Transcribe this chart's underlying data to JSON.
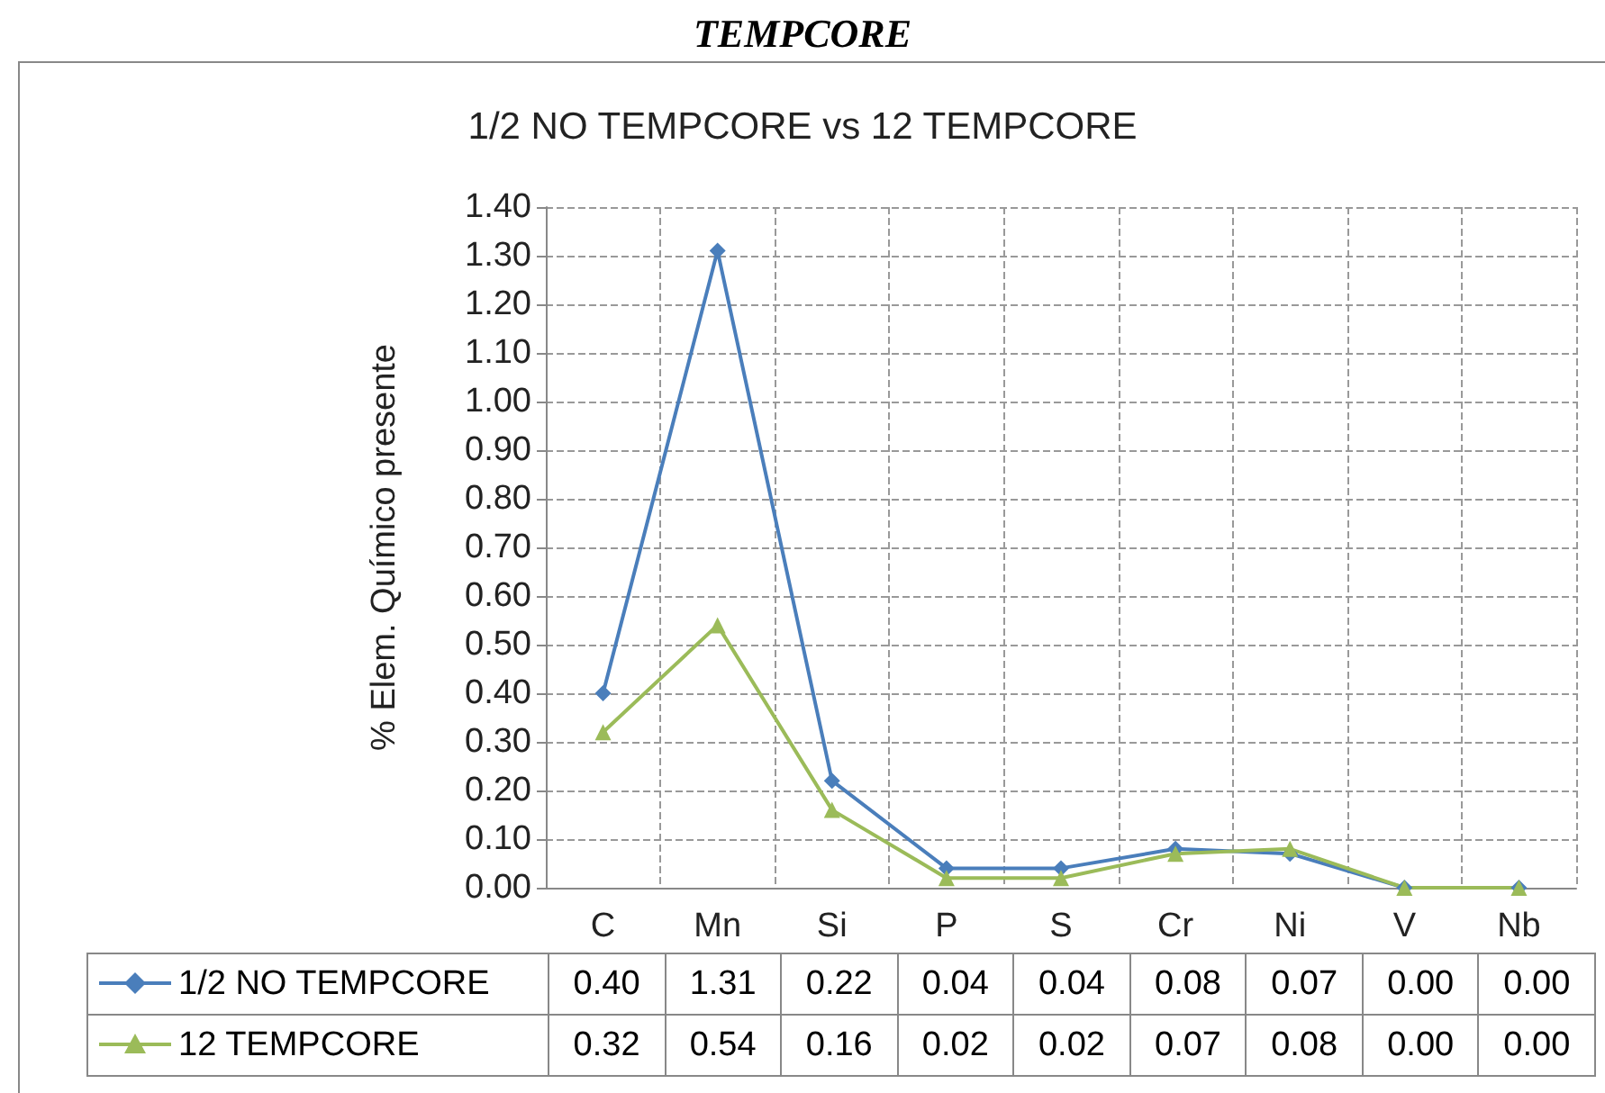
{
  "chart_data": {
    "type": "line",
    "title": "TEMPCORE",
    "subtitle": "1/2 NO TEMPCORE vs 12 TEMPCORE",
    "ylabel": "% Elem. Químico presente",
    "categories": [
      "C",
      "Mn",
      "Si",
      "P",
      "S",
      "Cr",
      "Ni",
      "V",
      "Nb"
    ],
    "series": [
      {
        "name": "1/2 NO TEMPCORE",
        "color": "#4a7ebb",
        "marker": "diamond",
        "values": [
          0.4,
          1.31,
          0.22,
          0.04,
          0.04,
          0.08,
          0.07,
          0.0,
          0.0
        ],
        "value_labels": [
          "0.40",
          "1.31",
          "0.22",
          "0.04",
          "0.04",
          "0.08",
          "0.07",
          "0.00",
          "0.00"
        ]
      },
      {
        "name": "12 TEMPCORE",
        "color": "#9bbb59",
        "marker": "triangle",
        "values": [
          0.32,
          0.54,
          0.16,
          0.02,
          0.02,
          0.07,
          0.08,
          0.0,
          0.0
        ],
        "value_labels": [
          "0.32",
          "0.54",
          "0.16",
          "0.02",
          "0.02",
          "0.07",
          "0.08",
          "0.00",
          "0.00"
        ]
      }
    ],
    "ylim": [
      0,
      1.4
    ],
    "yticks": [
      {
        "value": 0,
        "label": "0.00"
      },
      {
        "value": 0.1,
        "label": "0.10"
      },
      {
        "value": 0.2,
        "label": "0.20"
      },
      {
        "value": 0.3,
        "label": "0.30"
      },
      {
        "value": 0.4,
        "label": "0.40"
      },
      {
        "value": 0.5,
        "label": "0.50"
      },
      {
        "value": 0.6,
        "label": "0.60"
      },
      {
        "value": 0.7,
        "label": "0.70"
      },
      {
        "value": 0.8,
        "label": "0.80"
      },
      {
        "value": 0.9,
        "label": "0.90"
      },
      {
        "value": 1.0,
        "label": "1.00"
      },
      {
        "value": 1.1,
        "label": "1.10"
      },
      {
        "value": 1.2,
        "label": "1.20"
      },
      {
        "value": 1.3,
        "label": "1.30"
      },
      {
        "value": 1.4,
        "label": "1.40"
      }
    ],
    "grid": true,
    "legend": "bottom left",
    "line_style": "solid"
  }
}
